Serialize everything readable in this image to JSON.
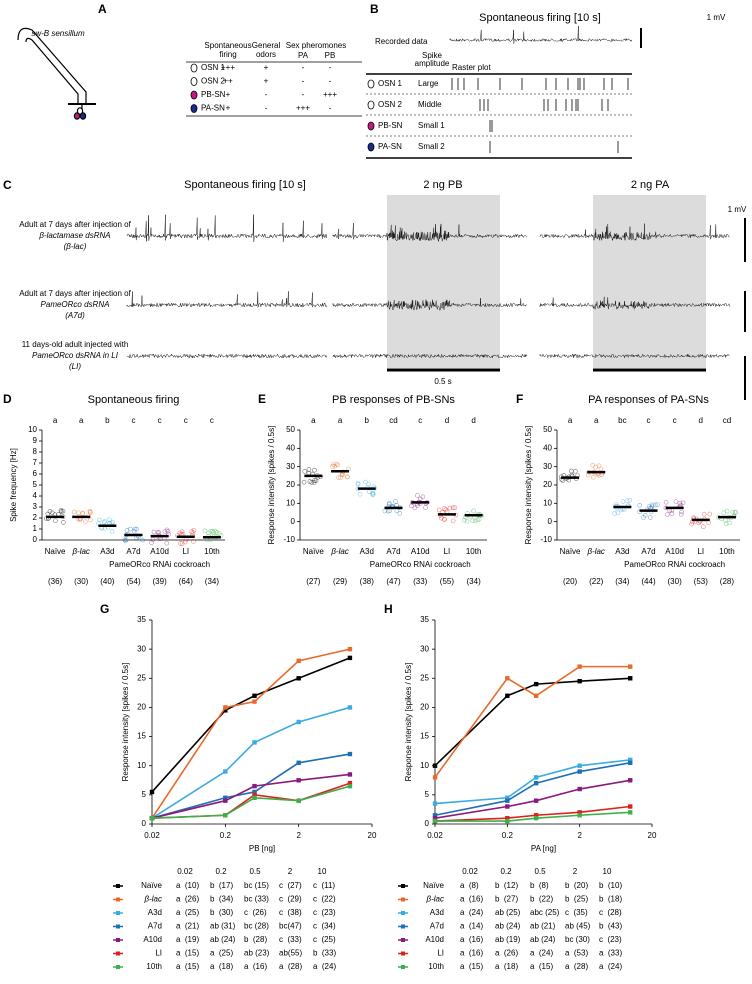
{
  "panel_labels": [
    "A",
    "B",
    "C",
    "D",
    "E",
    "F",
    "G",
    "H"
  ],
  "panel_a": {
    "sensillum_label": "sw-B sensillum",
    "columns": [
      [
        "Spontaneous",
        "firing"
      ],
      [
        "General",
        "odors"
      ],
      [
        "PA"
      ],
      [
        "PB"
      ]
    ],
    "group_header": "Sex pheromones",
    "rows": [
      {
        "name": "OSN 1",
        "color": "#ffffff",
        "cells": [
          "+++",
          "+",
          "-",
          "-"
        ]
      },
      {
        "name": "OSN 2",
        "color": "#ffffff",
        "cells": [
          "++",
          "+",
          "-",
          "-"
        ]
      },
      {
        "name": "PB-SN",
        "color": "#c8197f",
        "cells": [
          "+",
          "-",
          "-",
          "+++"
        ]
      },
      {
        "name": "PA-SN",
        "color": "#1b2a8c",
        "cells": [
          "+",
          "-",
          "+++",
          "-"
        ]
      }
    ]
  },
  "panel_b": {
    "title": "Spontaneous firing [10 s]",
    "scale": "1 mV",
    "recorded_label": "Recorded data",
    "spike_amplitude": [
      "Spike",
      "amplitude"
    ],
    "raster_plot": "Raster plot",
    "rows": [
      {
        "name": "OSN 1",
        "amplitude": "Large",
        "color": "#ffffff",
        "text_color": "#000000"
      },
      {
        "name": "OSN 2",
        "amplitude": "Middle",
        "color": "#ffffff",
        "text_color": "#000000"
      },
      {
        "name": "PB-SN",
        "amplitude": "Small 1",
        "color": "#c8197f",
        "text_color": "#c8197f"
      },
      {
        "name": "PA-SN",
        "amplitude": "Small 2",
        "color": "#1b2a8c",
        "text_color": "#1b2a8c"
      }
    ]
  },
  "panel_c": {
    "titles": [
      "Spontaneous firing [10 s]",
      "2 ng PB",
      "2 ng PA"
    ],
    "scale": "1 mV",
    "time_scale": "0.5 s",
    "rows": [
      [
        "Adult at 7 days after injection of",
        "β-lactamase dsRNA",
        "(β-lac)"
      ],
      [
        "Adult at 7 days after injection of",
        "PameORco dsRNA",
        "(A7d)"
      ],
      [
        "11 days-old adult injected with",
        "PameORco dsRNA in LI",
        "(LI)"
      ]
    ]
  },
  "chart_data": [
    {
      "type": "dot",
      "title": "Spontaneous firing",
      "ylabel": "Spike frequency [Hz]",
      "categories": [
        "Naïve",
        "β-lac",
        "A3d",
        "A7d",
        "A10d",
        "LI",
        "10th"
      ],
      "group_label": "PameORco RNAi cockroach",
      "values": [
        2.1,
        2.1,
        1.3,
        0.45,
        0.35,
        0.3,
        0.25
      ],
      "letters": [
        "a",
        "a",
        "b",
        "c",
        "c",
        "c",
        "c"
      ],
      "n": [
        "(36)",
        "(30)",
        "(40)",
        "(54)",
        "(39)",
        "(64)",
        "(34)"
      ],
      "colors": [
        "#000000",
        "#e8692a",
        "#3aabe0",
        "#1f6fb5",
        "#8b1a7e",
        "#e0201b",
        "#3cb04a"
      ],
      "ylim": [
        0,
        10
      ],
      "yticks": [
        0,
        1,
        2,
        3,
        4,
        5,
        6,
        7,
        8,
        9,
        10
      ]
    },
    {
      "type": "dot",
      "title": "PB responses of PB-SNs",
      "ylabel": "Response intensity [spikes / 0.5s]",
      "categories": [
        "Naïve",
        "β-lac",
        "A3d",
        "A7d",
        "A10d",
        "LI",
        "10th"
      ],
      "group_label": "PameORco RNAi cockroach",
      "values": [
        25,
        27.5,
        18,
        7.5,
        10.5,
        4,
        3.5
      ],
      "letters": [
        "a",
        "a",
        "b",
        "cd",
        "c",
        "d",
        "d"
      ],
      "n": [
        "(27)",
        "(29)",
        "(38)",
        "(47)",
        "(33)",
        "(55)",
        "(34)"
      ],
      "colors": [
        "#000000",
        "#e8692a",
        "#3aabe0",
        "#1f6fb5",
        "#8b1a7e",
        "#e0201b",
        "#3cb04a"
      ],
      "ylim": [
        -10,
        50
      ],
      "yticks": [
        -10,
        0,
        10,
        20,
        30,
        40,
        50
      ]
    },
    {
      "type": "dot",
      "title": "PA responses of PA-SNs",
      "ylabel": "Response intensity [spikes / 0.5s]",
      "categories": [
        "Naïve",
        "β-lac",
        "A3d",
        "A7d",
        "A10d",
        "LI",
        "10th"
      ],
      "group_label": "PameORco RNAi cockroach",
      "values": [
        24,
        27,
        8,
        6,
        7.5,
        1,
        2.5
      ],
      "letters": [
        "a",
        "a",
        "bc",
        "c",
        "c",
        "d",
        "cd"
      ],
      "n": [
        "(20)",
        "(22)",
        "(34)",
        "(44)",
        "(30)",
        "(53)",
        "(28)"
      ],
      "colors": [
        "#000000",
        "#e8692a",
        "#3aabe0",
        "#1f6fb5",
        "#8b1a7e",
        "#e0201b",
        "#3cb04a"
      ],
      "ylim": [
        -10,
        50
      ],
      "yticks": [
        -10,
        0,
        10,
        20,
        30,
        40,
        50
      ]
    },
    {
      "type": "line",
      "xlabel": "PB [ng]",
      "ylabel": "Response intensity [spikes / 0.5s]",
      "x": [
        0.02,
        0.2,
        0.5,
        2,
        10
      ],
      "xlim": [
        0.02,
        20
      ],
      "xticks": [
        0.02,
        0.2,
        2,
        20
      ],
      "log_x": true,
      "ylim": [
        0,
        35
      ],
      "yticks": [
        0,
        5,
        10,
        15,
        20,
        25,
        30,
        35
      ],
      "series": [
        {
          "name": "Naïve",
          "color": "#000000",
          "values": [
            5.5,
            19.5,
            22,
            25,
            28.5
          ]
        },
        {
          "name": "β-lac",
          "color": "#e8692a",
          "values": [
            1,
            20,
            21,
            28,
            30
          ]
        },
        {
          "name": "A3d",
          "color": "#3aabe0",
          "values": [
            1,
            9,
            14,
            17.5,
            20
          ]
        },
        {
          "name": "A7d",
          "color": "#1f6fb5",
          "values": [
            1,
            4.5,
            5.5,
            10.5,
            12
          ]
        },
        {
          "name": "A10d",
          "color": "#8b1a7e",
          "values": [
            1,
            4,
            6.5,
            7.5,
            8.5
          ]
        },
        {
          "name": "LI",
          "color": "#e0201b",
          "values": [
            1,
            1.5,
            5,
            4,
            7
          ]
        },
        {
          "name": "10th",
          "color": "#3cb04a",
          "values": [
            1,
            1.5,
            4.5,
            4,
            6.5
          ]
        }
      ],
      "table": {
        "columns": [
          "0.02",
          "0.2",
          "0.5",
          "2",
          "10"
        ],
        "rows": [
          [
            "a  (10)",
            "b  (17)",
            "bc (15)",
            "c  (27)",
            "c  (11)"
          ],
          [
            "a  (26)",
            "b  (34)",
            "bc (33)",
            "c  (29)",
            "c  (22)"
          ],
          [
            "a  (25)",
            "b  (30)",
            "c  (26)",
            "c  (38)",
            "c  (23)"
          ],
          [
            "a  (21)",
            "ab (31)",
            "bc (28)",
            "bc(47)",
            "c  (34)"
          ],
          [
            "a  (19)",
            "ab (24)",
            "b  (28)",
            "c  (33)",
            "c  (25)"
          ],
          [
            "a  (15)",
            "a  (25)",
            "ab (23)",
            "ab(55)",
            "b  (33)"
          ],
          [
            "a  (15)",
            "a  (18)",
            "a  (16)",
            "a  (28)",
            "a  (24)"
          ]
        ]
      }
    },
    {
      "type": "line",
      "xlabel": "PA [ng]",
      "ylabel": "Response intensity [spikes / 0.5s]",
      "x": [
        0.02,
        0.2,
        0.5,
        2,
        10
      ],
      "xlim": [
        0.02,
        20
      ],
      "xticks": [
        0.02,
        0.2,
        2,
        20
      ],
      "log_x": true,
      "ylim": [
        0,
        35
      ],
      "yticks": [
        0,
        5,
        10,
        15,
        20,
        25,
        30,
        35
      ],
      "series": [
        {
          "name": "Naïve",
          "color": "#000000",
          "values": [
            10,
            22,
            24,
            24.5,
            25
          ]
        },
        {
          "name": "β-lac",
          "color": "#e8692a",
          "values": [
            8,
            25,
            22,
            27,
            27
          ]
        },
        {
          "name": "A3d",
          "color": "#3aabe0",
          "values": [
            3.5,
            4.5,
            8,
            10,
            11
          ]
        },
        {
          "name": "A7d",
          "color": "#1f6fb5",
          "values": [
            1.5,
            4,
            7,
            9,
            10.5
          ]
        },
        {
          "name": "A10d",
          "color": "#8b1a7e",
          "values": [
            1,
            3,
            4,
            6,
            7.5
          ]
        },
        {
          "name": "LI",
          "color": "#e0201b",
          "values": [
            0.5,
            1,
            1.5,
            2,
            3
          ]
        },
        {
          "name": "10th",
          "color": "#3cb04a",
          "values": [
            0.5,
            0.5,
            1,
            1.5,
            2
          ]
        }
      ],
      "table": {
        "columns": [
          "0.02",
          "0.2",
          "0.5",
          "2",
          "10"
        ],
        "rows": [
          [
            "a  (8)",
            "b  (12)",
            "b  (8)",
            "b  (20)",
            "b  (10)"
          ],
          [
            "a  (16)",
            "b  (27)",
            "b  (22)",
            "b  (25)",
            "b  (18)"
          ],
          [
            "a  (24)",
            "ab (25)",
            "abc (25)",
            "c  (35)",
            "c  (28)"
          ],
          [
            "a  (14)",
            "ab (24)",
            "ab (21)",
            "ab (45)",
            "b  (43)"
          ],
          [
            "a  (16)",
            "ab (19)",
            "ab (24)",
            "bc (30)",
            "c  (23)"
          ],
          [
            "a  (16)",
            "a  (26)",
            "a  (24)",
            "a  (53)",
            "a  (33)"
          ],
          [
            "a  (15)",
            "a  (18)",
            "a  (15)",
            "a  (28)",
            "a  (24)"
          ]
        ]
      }
    }
  ]
}
